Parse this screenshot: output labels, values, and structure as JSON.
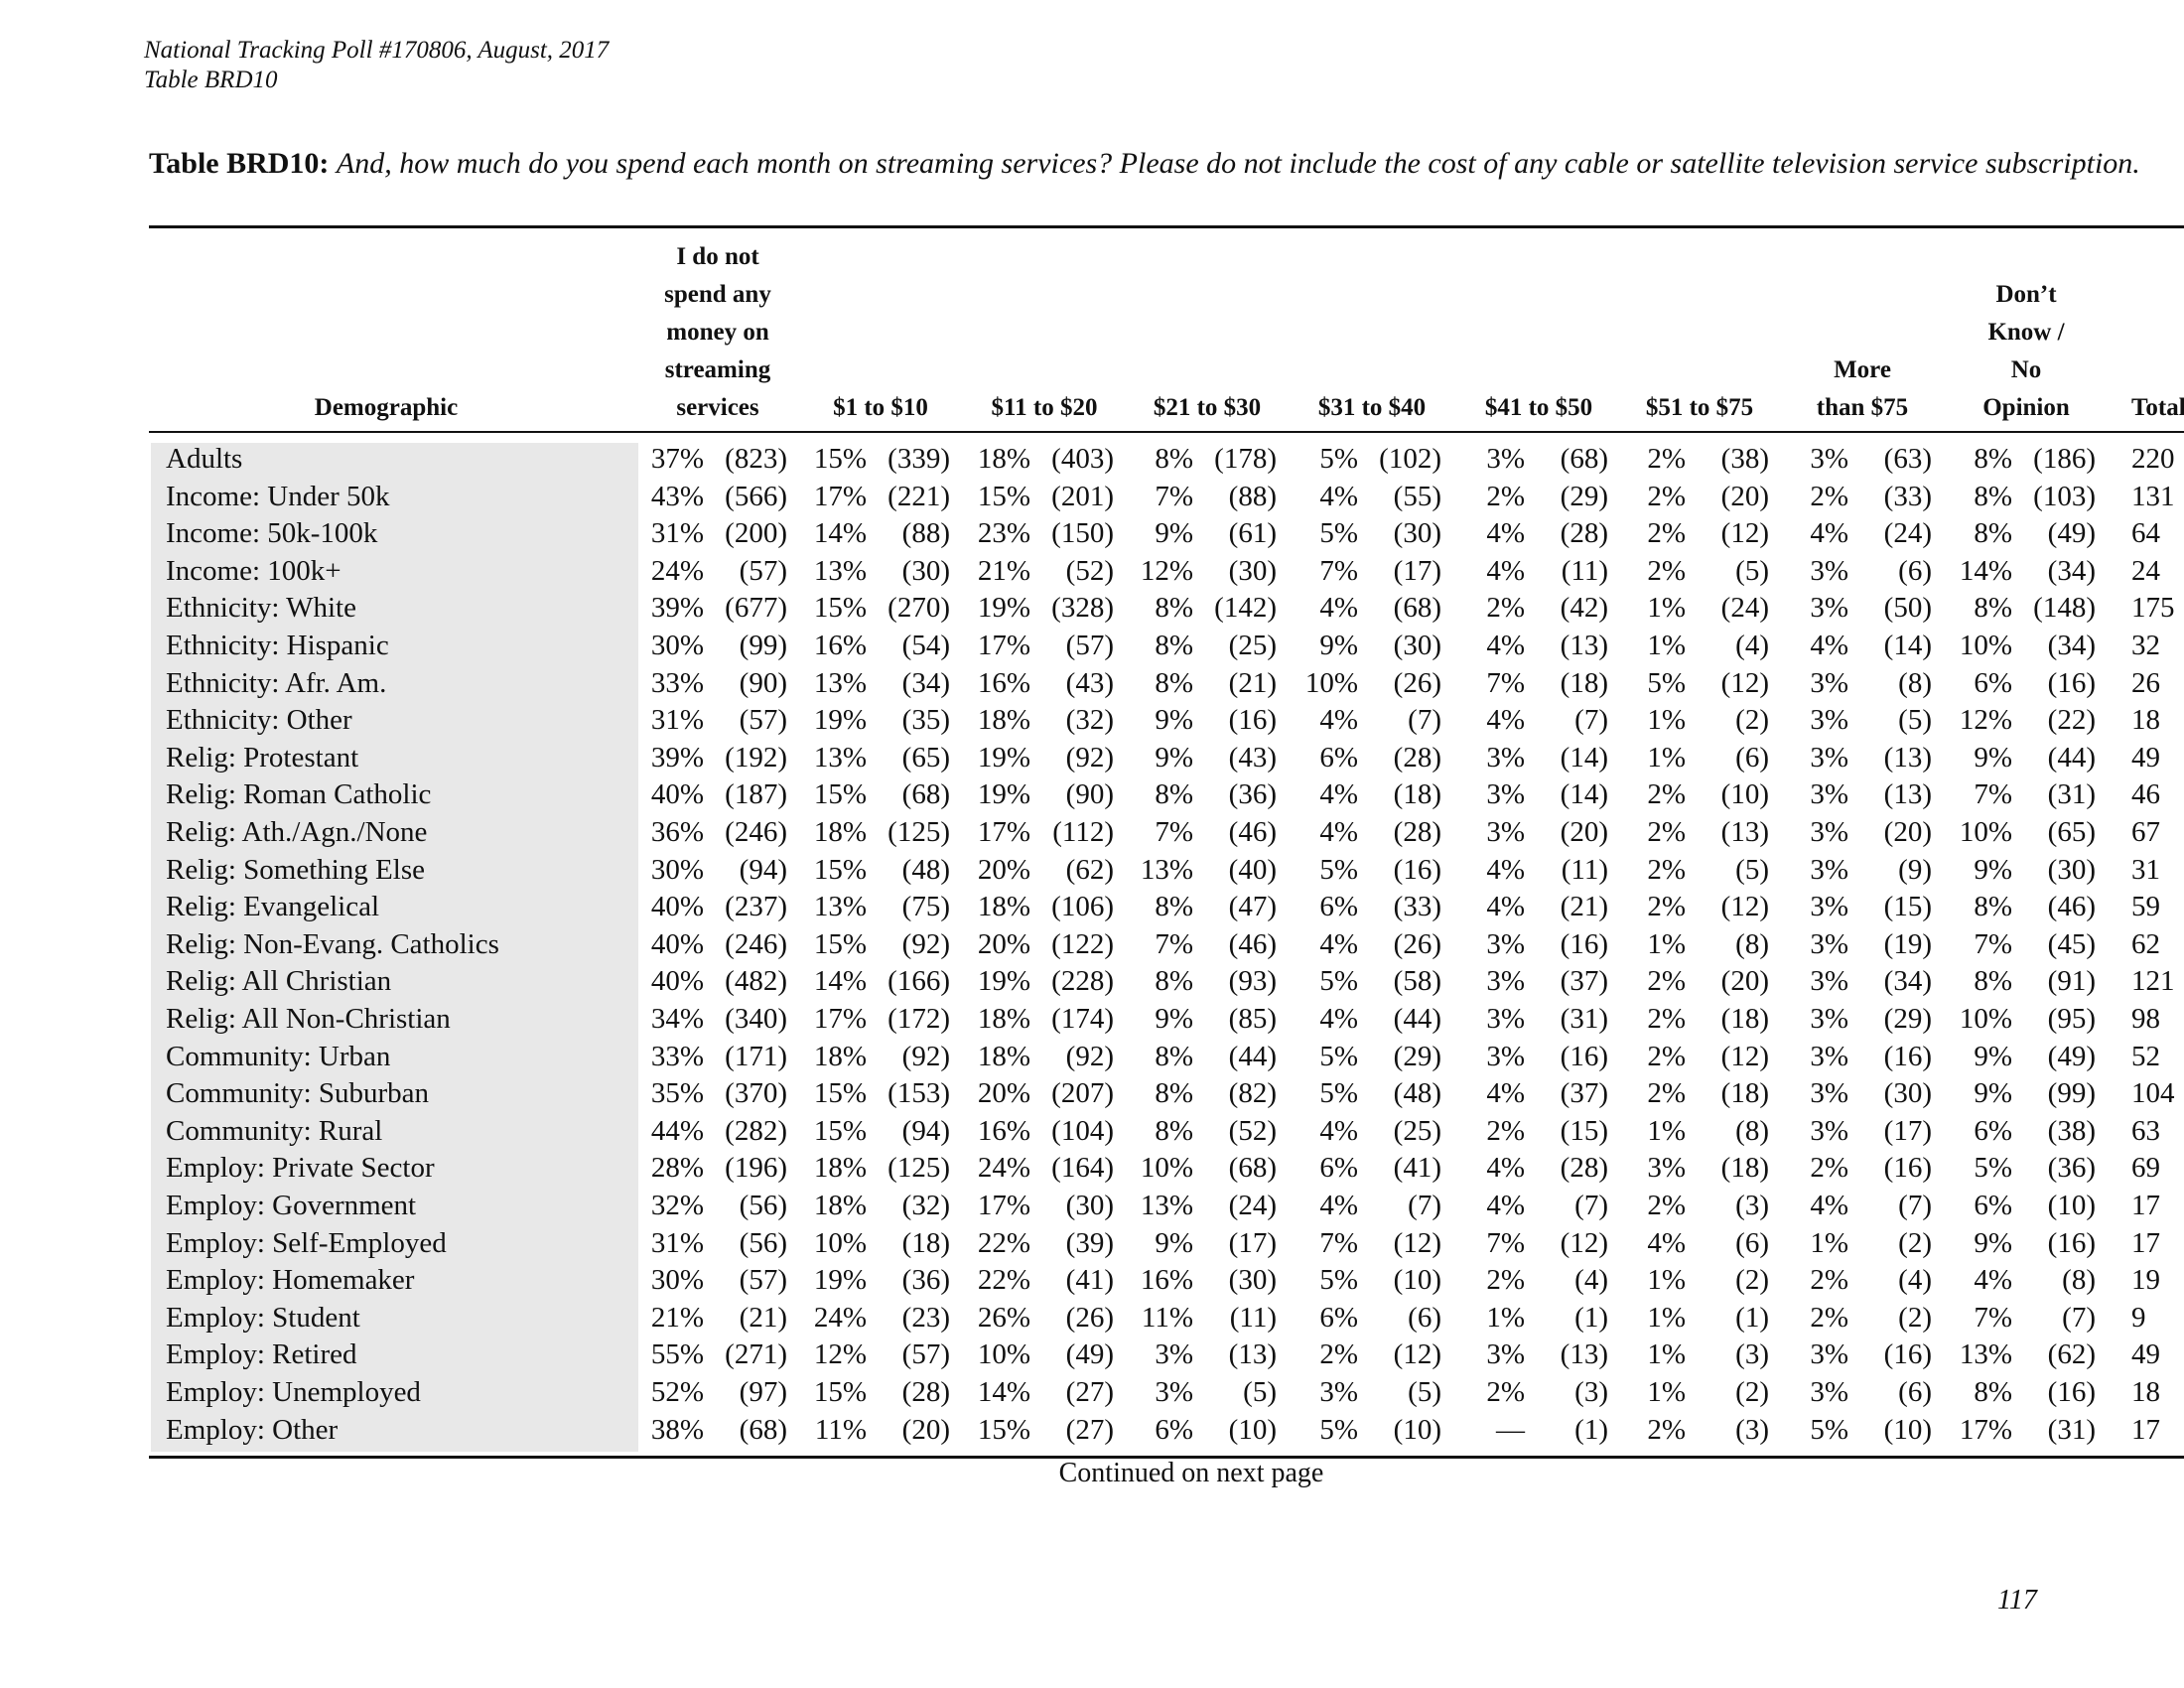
{
  "header": {
    "lines": [
      "National Tracking Poll #170806, August, 2017",
      "Table BRD10"
    ]
  },
  "table": {
    "title_label": "Table BRD10:",
    "title_text": "And, how much do you spend each month on streaming services? Please do not include the cost of any cable or satellite television service subscription.",
    "columns": [
      [
        "Demographic"
      ],
      [
        "I do not",
        "spend any",
        "money on",
        "streaming",
        "services"
      ],
      [
        "$1 to $10"
      ],
      [
        "$11 to $20"
      ],
      [
        "$21 to $30"
      ],
      [
        "$31 to $40"
      ],
      [
        "$41 to $50"
      ],
      [
        "$51 to $75"
      ],
      [
        "More",
        "than $75"
      ],
      [
        "Don’t",
        "Know /",
        "No",
        "Opinion"
      ],
      [
        "Total"
      ]
    ],
    "rows": [
      {
        "label": "Adults",
        "cells": [
          [
            "37%",
            "(823)"
          ],
          [
            "15%",
            "(339)"
          ],
          [
            "18%",
            "(403)"
          ],
          [
            "8%",
            "(178)"
          ],
          [
            "5%",
            "(102)"
          ],
          [
            "3%",
            "(68)"
          ],
          [
            "2%",
            "(38)"
          ],
          [
            "3%",
            "(63)"
          ],
          [
            "8%",
            "(186)"
          ]
        ],
        "total": "220"
      },
      {
        "label": "Income: Under 50k",
        "cells": [
          [
            "43%",
            "(566)"
          ],
          [
            "17%",
            "(221)"
          ],
          [
            "15%",
            "(201)"
          ],
          [
            "7%",
            "(88)"
          ],
          [
            "4%",
            "(55)"
          ],
          [
            "2%",
            "(29)"
          ],
          [
            "2%",
            "(20)"
          ],
          [
            "2%",
            "(33)"
          ],
          [
            "8%",
            "(103)"
          ]
        ],
        "total": "131"
      },
      {
        "label": "Income: 50k-100k",
        "cells": [
          [
            "31%",
            "(200)"
          ],
          [
            "14%",
            "(88)"
          ],
          [
            "23%",
            "(150)"
          ],
          [
            "9%",
            "(61)"
          ],
          [
            "5%",
            "(30)"
          ],
          [
            "4%",
            "(28)"
          ],
          [
            "2%",
            "(12)"
          ],
          [
            "4%",
            "(24)"
          ],
          [
            "8%",
            "(49)"
          ]
        ],
        "total": "64"
      },
      {
        "label": "Income: 100k+",
        "cells": [
          [
            "24%",
            "(57)"
          ],
          [
            "13%",
            "(30)"
          ],
          [
            "21%",
            "(52)"
          ],
          [
            "12%",
            "(30)"
          ],
          [
            "7%",
            "(17)"
          ],
          [
            "4%",
            "(11)"
          ],
          [
            "2%",
            "(5)"
          ],
          [
            "3%",
            "(6)"
          ],
          [
            "14%",
            "(34)"
          ]
        ],
        "total": "24"
      },
      {
        "label": "Ethnicity: White",
        "cells": [
          [
            "39%",
            "(677)"
          ],
          [
            "15%",
            "(270)"
          ],
          [
            "19%",
            "(328)"
          ],
          [
            "8%",
            "(142)"
          ],
          [
            "4%",
            "(68)"
          ],
          [
            "2%",
            "(42)"
          ],
          [
            "1%",
            "(24)"
          ],
          [
            "3%",
            "(50)"
          ],
          [
            "8%",
            "(148)"
          ]
        ],
        "total": "175"
      },
      {
        "label": "Ethnicity: Hispanic",
        "cells": [
          [
            "30%",
            "(99)"
          ],
          [
            "16%",
            "(54)"
          ],
          [
            "17%",
            "(57)"
          ],
          [
            "8%",
            "(25)"
          ],
          [
            "9%",
            "(30)"
          ],
          [
            "4%",
            "(13)"
          ],
          [
            "1%",
            "(4)"
          ],
          [
            "4%",
            "(14)"
          ],
          [
            "10%",
            "(34)"
          ]
        ],
        "total": "32"
      },
      {
        "label": "Ethnicity: Afr. Am.",
        "cells": [
          [
            "33%",
            "(90)"
          ],
          [
            "13%",
            "(34)"
          ],
          [
            "16%",
            "(43)"
          ],
          [
            "8%",
            "(21)"
          ],
          [
            "10%",
            "(26)"
          ],
          [
            "7%",
            "(18)"
          ],
          [
            "5%",
            "(12)"
          ],
          [
            "3%",
            "(8)"
          ],
          [
            "6%",
            "(16)"
          ]
        ],
        "total": "26"
      },
      {
        "label": "Ethnicity: Other",
        "cells": [
          [
            "31%",
            "(57)"
          ],
          [
            "19%",
            "(35)"
          ],
          [
            "18%",
            "(32)"
          ],
          [
            "9%",
            "(16)"
          ],
          [
            "4%",
            "(7)"
          ],
          [
            "4%",
            "(7)"
          ],
          [
            "1%",
            "(2)"
          ],
          [
            "3%",
            "(5)"
          ],
          [
            "12%",
            "(22)"
          ]
        ],
        "total": "18"
      },
      {
        "label": "Relig: Protestant",
        "cells": [
          [
            "39%",
            "(192)"
          ],
          [
            "13%",
            "(65)"
          ],
          [
            "19%",
            "(92)"
          ],
          [
            "9%",
            "(43)"
          ],
          [
            "6%",
            "(28)"
          ],
          [
            "3%",
            "(14)"
          ],
          [
            "1%",
            "(6)"
          ],
          [
            "3%",
            "(13)"
          ],
          [
            "9%",
            "(44)"
          ]
        ],
        "total": "49"
      },
      {
        "label": "Relig: Roman Catholic",
        "cells": [
          [
            "40%",
            "(187)"
          ],
          [
            "15%",
            "(68)"
          ],
          [
            "19%",
            "(90)"
          ],
          [
            "8%",
            "(36)"
          ],
          [
            "4%",
            "(18)"
          ],
          [
            "3%",
            "(14)"
          ],
          [
            "2%",
            "(10)"
          ],
          [
            "3%",
            "(13)"
          ],
          [
            "7%",
            "(31)"
          ]
        ],
        "total": "46"
      },
      {
        "label": "Relig: Ath./Agn./None",
        "cells": [
          [
            "36%",
            "(246)"
          ],
          [
            "18%",
            "(125)"
          ],
          [
            "17%",
            "(112)"
          ],
          [
            "7%",
            "(46)"
          ],
          [
            "4%",
            "(28)"
          ],
          [
            "3%",
            "(20)"
          ],
          [
            "2%",
            "(13)"
          ],
          [
            "3%",
            "(20)"
          ],
          [
            "10%",
            "(65)"
          ]
        ],
        "total": "67"
      },
      {
        "label": "Relig: Something Else",
        "cells": [
          [
            "30%",
            "(94)"
          ],
          [
            "15%",
            "(48)"
          ],
          [
            "20%",
            "(62)"
          ],
          [
            "13%",
            "(40)"
          ],
          [
            "5%",
            "(16)"
          ],
          [
            "4%",
            "(11)"
          ],
          [
            "2%",
            "(5)"
          ],
          [
            "3%",
            "(9)"
          ],
          [
            "9%",
            "(30)"
          ]
        ],
        "total": "31"
      },
      {
        "label": "Relig: Evangelical",
        "cells": [
          [
            "40%",
            "(237)"
          ],
          [
            "13%",
            "(75)"
          ],
          [
            "18%",
            "(106)"
          ],
          [
            "8%",
            "(47)"
          ],
          [
            "6%",
            "(33)"
          ],
          [
            "4%",
            "(21)"
          ],
          [
            "2%",
            "(12)"
          ],
          [
            "3%",
            "(15)"
          ],
          [
            "8%",
            "(46)"
          ]
        ],
        "total": "59"
      },
      {
        "label": "Relig: Non-Evang. Catholics",
        "cells": [
          [
            "40%",
            "(246)"
          ],
          [
            "15%",
            "(92)"
          ],
          [
            "20%",
            "(122)"
          ],
          [
            "7%",
            "(46)"
          ],
          [
            "4%",
            "(26)"
          ],
          [
            "3%",
            "(16)"
          ],
          [
            "1%",
            "(8)"
          ],
          [
            "3%",
            "(19)"
          ],
          [
            "7%",
            "(45)"
          ]
        ],
        "total": "62"
      },
      {
        "label": "Relig: All Christian",
        "cells": [
          [
            "40%",
            "(482)"
          ],
          [
            "14%",
            "(166)"
          ],
          [
            "19%",
            "(228)"
          ],
          [
            "8%",
            "(93)"
          ],
          [
            "5%",
            "(58)"
          ],
          [
            "3%",
            "(37)"
          ],
          [
            "2%",
            "(20)"
          ],
          [
            "3%",
            "(34)"
          ],
          [
            "8%",
            "(91)"
          ]
        ],
        "total": "121"
      },
      {
        "label": "Relig: All Non-Christian",
        "cells": [
          [
            "34%",
            "(340)"
          ],
          [
            "17%",
            "(172)"
          ],
          [
            "18%",
            "(174)"
          ],
          [
            "9%",
            "(85)"
          ],
          [
            "4%",
            "(44)"
          ],
          [
            "3%",
            "(31)"
          ],
          [
            "2%",
            "(18)"
          ],
          [
            "3%",
            "(29)"
          ],
          [
            "10%",
            "(95)"
          ]
        ],
        "total": "98"
      },
      {
        "label": "Community: Urban",
        "cells": [
          [
            "33%",
            "(171)"
          ],
          [
            "18%",
            "(92)"
          ],
          [
            "18%",
            "(92)"
          ],
          [
            "8%",
            "(44)"
          ],
          [
            "5%",
            "(29)"
          ],
          [
            "3%",
            "(16)"
          ],
          [
            "2%",
            "(12)"
          ],
          [
            "3%",
            "(16)"
          ],
          [
            "9%",
            "(49)"
          ]
        ],
        "total": "52"
      },
      {
        "label": "Community: Suburban",
        "cells": [
          [
            "35%",
            "(370)"
          ],
          [
            "15%",
            "(153)"
          ],
          [
            "20%",
            "(207)"
          ],
          [
            "8%",
            "(82)"
          ],
          [
            "5%",
            "(48)"
          ],
          [
            "4%",
            "(37)"
          ],
          [
            "2%",
            "(18)"
          ],
          [
            "3%",
            "(30)"
          ],
          [
            "9%",
            "(99)"
          ]
        ],
        "total": "104"
      },
      {
        "label": "Community: Rural",
        "cells": [
          [
            "44%",
            "(282)"
          ],
          [
            "15%",
            "(94)"
          ],
          [
            "16%",
            "(104)"
          ],
          [
            "8%",
            "(52)"
          ],
          [
            "4%",
            "(25)"
          ],
          [
            "2%",
            "(15)"
          ],
          [
            "1%",
            "(8)"
          ],
          [
            "3%",
            "(17)"
          ],
          [
            "6%",
            "(38)"
          ]
        ],
        "total": "63"
      },
      {
        "label": "Employ: Private Sector",
        "cells": [
          [
            "28%",
            "(196)"
          ],
          [
            "18%",
            "(125)"
          ],
          [
            "24%",
            "(164)"
          ],
          [
            "10%",
            "(68)"
          ],
          [
            "6%",
            "(41)"
          ],
          [
            "4%",
            "(28)"
          ],
          [
            "3%",
            "(18)"
          ],
          [
            "2%",
            "(16)"
          ],
          [
            "5%",
            "(36)"
          ]
        ],
        "total": "69"
      },
      {
        "label": "Employ: Government",
        "cells": [
          [
            "32%",
            "(56)"
          ],
          [
            "18%",
            "(32)"
          ],
          [
            "17%",
            "(30)"
          ],
          [
            "13%",
            "(24)"
          ],
          [
            "4%",
            "(7)"
          ],
          [
            "4%",
            "(7)"
          ],
          [
            "2%",
            "(3)"
          ],
          [
            "4%",
            "(7)"
          ],
          [
            "6%",
            "(10)"
          ]
        ],
        "total": "17"
      },
      {
        "label": "Employ: Self-Employed",
        "cells": [
          [
            "31%",
            "(56)"
          ],
          [
            "10%",
            "(18)"
          ],
          [
            "22%",
            "(39)"
          ],
          [
            "9%",
            "(17)"
          ],
          [
            "7%",
            "(12)"
          ],
          [
            "7%",
            "(12)"
          ],
          [
            "4%",
            "(6)"
          ],
          [
            "1%",
            "(2)"
          ],
          [
            "9%",
            "(16)"
          ]
        ],
        "total": "17"
      },
      {
        "label": "Employ: Homemaker",
        "cells": [
          [
            "30%",
            "(57)"
          ],
          [
            "19%",
            "(36)"
          ],
          [
            "22%",
            "(41)"
          ],
          [
            "16%",
            "(30)"
          ],
          [
            "5%",
            "(10)"
          ],
          [
            "2%",
            "(4)"
          ],
          [
            "1%",
            "(2)"
          ],
          [
            "2%",
            "(4)"
          ],
          [
            "4%",
            "(8)"
          ]
        ],
        "total": "19"
      },
      {
        "label": "Employ: Student",
        "cells": [
          [
            "21%",
            "(21)"
          ],
          [
            "24%",
            "(23)"
          ],
          [
            "26%",
            "(26)"
          ],
          [
            "11%",
            "(11)"
          ],
          [
            "6%",
            "(6)"
          ],
          [
            "1%",
            "(1)"
          ],
          [
            "1%",
            "(1)"
          ],
          [
            "2%",
            "(2)"
          ],
          [
            "7%",
            "(7)"
          ]
        ],
        "total": "9"
      },
      {
        "label": "Employ: Retired",
        "cells": [
          [
            "55%",
            "(271)"
          ],
          [
            "12%",
            "(57)"
          ],
          [
            "10%",
            "(49)"
          ],
          [
            "3%",
            "(13)"
          ],
          [
            "2%",
            "(12)"
          ],
          [
            "3%",
            "(13)"
          ],
          [
            "1%",
            "(3)"
          ],
          [
            "3%",
            "(16)"
          ],
          [
            "13%",
            "(62)"
          ]
        ],
        "total": "49"
      },
      {
        "label": "Employ: Unemployed",
        "cells": [
          [
            "52%",
            "(97)"
          ],
          [
            "15%",
            "(28)"
          ],
          [
            "14%",
            "(27)"
          ],
          [
            "3%",
            "(5)"
          ],
          [
            "3%",
            "(5)"
          ],
          [
            "2%",
            "(3)"
          ],
          [
            "1%",
            "(2)"
          ],
          [
            "3%",
            "(6)"
          ],
          [
            "8%",
            "(16)"
          ]
        ],
        "total": "18"
      },
      {
        "label": "Employ: Other",
        "cells": [
          [
            "38%",
            "(68)"
          ],
          [
            "11%",
            "(20)"
          ],
          [
            "15%",
            "(27)"
          ],
          [
            "6%",
            "(10)"
          ],
          [
            "5%",
            "(10)"
          ],
          [
            "—",
            "(1)"
          ],
          [
            "2%",
            "(3)"
          ],
          [
            "5%",
            "(10)"
          ],
          [
            "17%",
            "(31)"
          ]
        ],
        "total": "17"
      }
    ],
    "continued": "Continued on next page"
  },
  "footer": {
    "page_number": "117"
  }
}
